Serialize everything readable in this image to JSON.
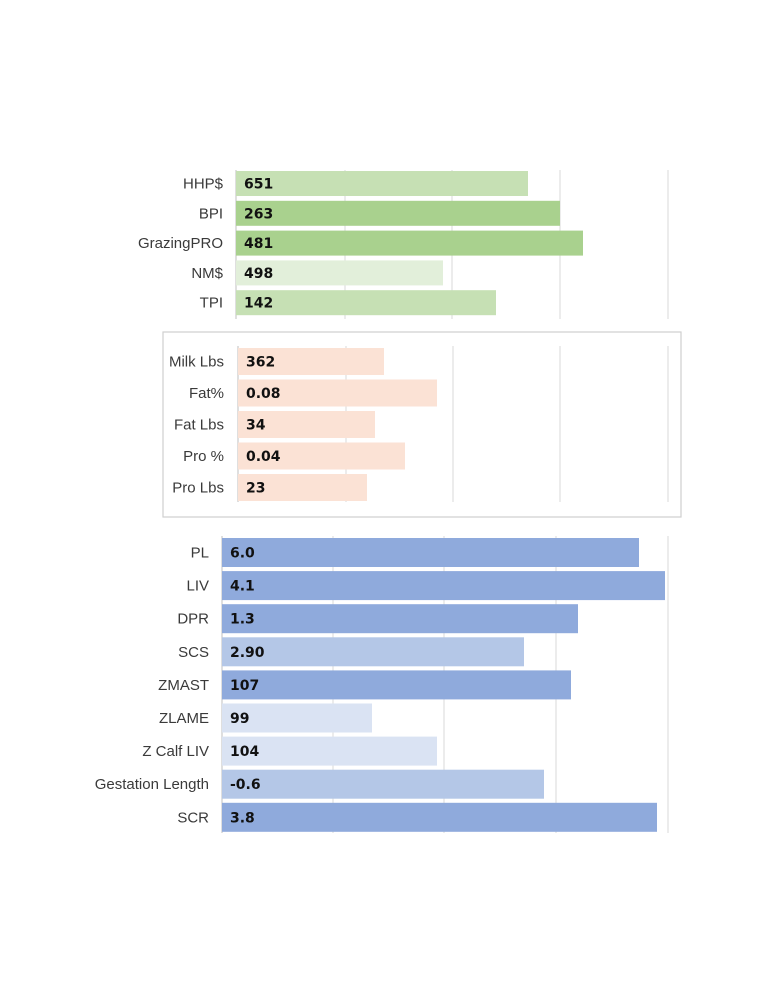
{
  "chart_data": [
    {
      "type": "bar",
      "orientation": "horizontal",
      "categories": [
        "HHP$",
        "BPI",
        "GrazingPRO",
        "NM$",
        "TPI"
      ],
      "values": [
        651,
        263,
        481,
        498,
        142
      ],
      "data_labels": [
        "651",
        "263",
        "481",
        "498",
        "142"
      ],
      "bar_colors": [
        "#c6e0b4",
        "#a9d18e",
        "#a9d18e",
        "#e2efda",
        "#c6e0b4"
      ],
      "grid": true,
      "legend": "none"
    },
    {
      "type": "bar",
      "orientation": "horizontal",
      "categories": [
        "Milk Lbs",
        "Fat%",
        "Fat Lbs",
        "Pro %",
        "Pro Lbs"
      ],
      "values": [
        362,
        0.08,
        34,
        0.04,
        23
      ],
      "data_labels": [
        "362",
        "0.08",
        "34",
        "0.04",
        "23"
      ],
      "bar_colors": [
        "#fbe2d5",
        "#fbe2d5",
        "#fbe2d5",
        "#fbe2d5",
        "#fbe2d5"
      ],
      "grid": true,
      "framed": true,
      "legend": "none"
    },
    {
      "type": "bar",
      "orientation": "horizontal",
      "categories": [
        "PL",
        "LIV",
        "DPR",
        "SCS",
        "ZMAST",
        "ZLAME",
        "Z Calf LIV",
        "Gestation Length",
        "SCR"
      ],
      "values": [
        6.0,
        4.1,
        1.3,
        2.9,
        107,
        99,
        104,
        -0.6,
        3.8
      ],
      "data_labels": [
        "6.0",
        "4.1",
        "1.3",
        "2.90",
        "107",
        "99",
        "104",
        "-0.6",
        "3.8"
      ],
      "bar_colors": [
        "#8faadc",
        "#8faadc",
        "#8faadc",
        "#b4c7e7",
        "#8faadc",
        "#dae3f3",
        "#dae3f3",
        "#b4c7e7",
        "#8faadc"
      ],
      "grid": true,
      "legend": "none"
    }
  ]
}
